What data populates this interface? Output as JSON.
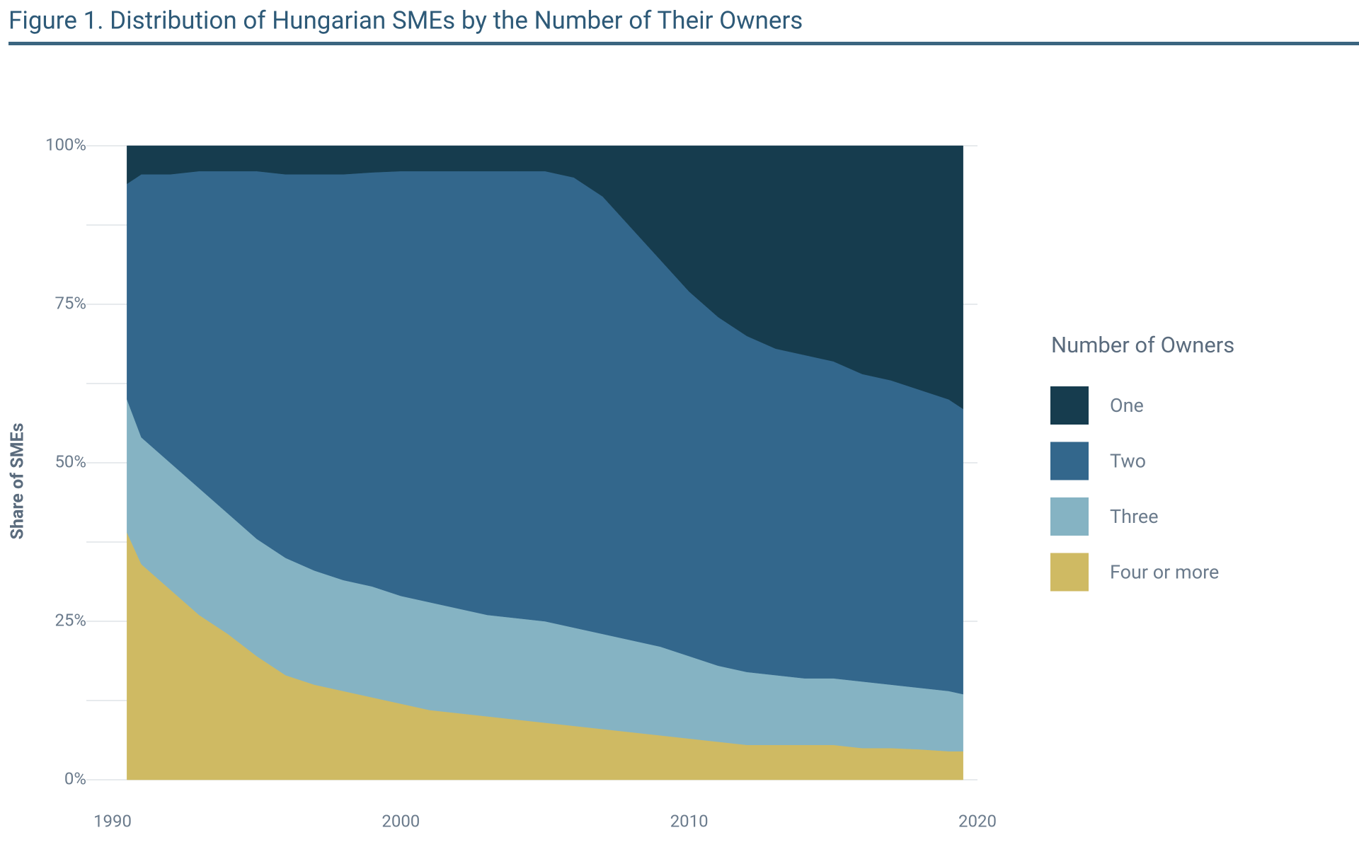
{
  "chart_data": {
    "type": "stacked_area",
    "title": "Figure 1. Distribution of Hungarian SMEs by the Number of Their Owners",
    "y_label": "Share of SMEs",
    "legend_title": "Number of Owners",
    "legend": "right",
    "x": [
      1990.5,
      1991,
      1992,
      1993,
      1994,
      1995,
      1996,
      1997,
      1998,
      1999,
      2000,
      2001,
      2002,
      2003,
      2004,
      2005,
      2006,
      2007,
      2008,
      2009,
      2010,
      2011,
      2012,
      2013,
      2014,
      2015,
      2016,
      2017,
      2018,
      2019,
      2019.5
    ],
    "xlim": [
      1990,
      2020
    ],
    "xticks": [
      1990,
      2000,
      2010,
      2020
    ],
    "ylim": [
      0,
      100
    ],
    "yticks": [
      {
        "value": 0,
        "label": "0%"
      },
      {
        "value": 25,
        "label": "25%"
      },
      {
        "value": 50,
        "label": "50%"
      },
      {
        "value": 75,
        "label": "75%"
      },
      {
        "value": 100,
        "label": "100%"
      }
    ],
    "grid": true,
    "series": [
      {
        "name": "Four or more",
        "color": "#cfba63",
        "values": [
          39,
          34,
          30,
          26,
          23,
          19.5,
          16.5,
          15,
          14,
          13,
          12,
          11,
          10.5,
          10,
          9.5,
          9,
          8.5,
          8,
          7.5,
          7,
          6.5,
          6,
          5.5,
          5.5,
          5.5,
          5.5,
          5,
          5,
          4.8,
          4.5,
          4.5
        ]
      },
      {
        "name": "Three",
        "color": "#85b3c3",
        "values": [
          21,
          20,
          20,
          20,
          19,
          18.5,
          18.5,
          18,
          17.5,
          17.5,
          17,
          17,
          16.5,
          16,
          16,
          16,
          15.5,
          15,
          14.5,
          14,
          13,
          12,
          11.5,
          11,
          10.5,
          10.5,
          10.5,
          10,
          9.7,
          9.5,
          9
        ]
      },
      {
        "name": "Two",
        "color": "#33678c",
        "values": [
          34,
          41.5,
          45.5,
          50,
          54,
          58,
          60.5,
          62.5,
          64,
          65.3,
          67,
          68,
          69,
          70,
          70.5,
          71,
          71,
          69,
          65,
          61,
          57.5,
          55,
          53,
          51.5,
          51,
          50,
          48.5,
          48,
          47,
          46,
          45
        ]
      },
      {
        "name": "One",
        "color": "#163c4e",
        "values": [
          6,
          4.5,
          4.5,
          4,
          4,
          4,
          4.5,
          4.5,
          4.5,
          4.2,
          4,
          4,
          4,
          4,
          4,
          4,
          5,
          8,
          13,
          18,
          23,
          27,
          30,
          32,
          33,
          34,
          36,
          37,
          38.5,
          40,
          41.5
        ]
      }
    ]
  }
}
